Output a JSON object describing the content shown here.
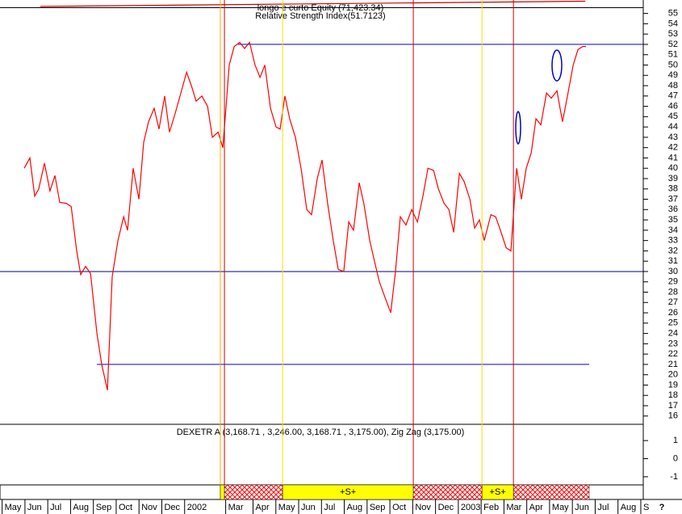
{
  "chart_data": {
    "type": "line",
    "title": "longo e curto Equity (71,423.34)",
    "subtitle": "Relative Strength Index(51.7123)",
    "lower_title": "DEXETR A (3,168.71 , 3,246.00, 3,168.71 , 3,175.00), Zig Zag (3,175.00)",
    "corner_label": "?",
    "xlim": [
      -0.2,
      29.7
    ],
    "xticks": [
      {
        "value": 0,
        "label": "May"
      },
      {
        "value": 1,
        "label": "Jun"
      },
      {
        "value": 2,
        "label": "Jul"
      },
      {
        "value": 3,
        "label": "Aug"
      },
      {
        "value": 4,
        "label": "Sep"
      },
      {
        "value": 5,
        "label": "Oct"
      },
      {
        "value": 6,
        "label": "Nov"
      },
      {
        "value": 7,
        "label": "Dec"
      },
      {
        "value": 8,
        "label": "2002"
      },
      {
        "value": 9.8,
        "label": "Mar"
      },
      {
        "value": 11,
        "label": "Apr"
      },
      {
        "value": 12,
        "label": "May"
      },
      {
        "value": 13,
        "label": "Jun"
      },
      {
        "value": 14,
        "label": "Jul"
      },
      {
        "value": 15,
        "label": "Aug"
      },
      {
        "value": 16,
        "label": "Sep"
      },
      {
        "value": 17,
        "label": "Oct"
      },
      {
        "value": 18,
        "label": "Nov"
      },
      {
        "value": 19,
        "label": "Dec"
      },
      {
        "value": 20,
        "label": "2003"
      },
      {
        "value": 21,
        "label": "Feb"
      },
      {
        "value": 22,
        "label": "Mar"
      },
      {
        "value": 23,
        "label": "Apr"
      },
      {
        "value": 24,
        "label": "May"
      },
      {
        "value": 25,
        "label": "Jun"
      },
      {
        "value": 26,
        "label": "Jul"
      },
      {
        "value": 27,
        "label": "Aug"
      },
      {
        "value": 28,
        "label": "S"
      }
    ],
    "ylim": [
      15.2,
      56.3
    ],
    "yticks": [
      16,
      17,
      18,
      19,
      20,
      21,
      22,
      23,
      24,
      25,
      26,
      27,
      28,
      29,
      30,
      31,
      32,
      33,
      34,
      35,
      36,
      37,
      38,
      39,
      40,
      41,
      42,
      43,
      44,
      45,
      46,
      47,
      48,
      49,
      50,
      51,
      52,
      53,
      54,
      55
    ],
    "y2lim": [
      -1.45,
      1.9
    ],
    "y2ticks": [
      1,
      0,
      -1
    ],
    "series": [
      {
        "name": "Relative Strength Index",
        "color": "#ff0000",
        "x": [
          0.86,
          1.11,
          1.32,
          1.5,
          1.75,
          1.99,
          2.21,
          2.42,
          2.7,
          2.92,
          3.16,
          3.34,
          3.55,
          3.77,
          4.05,
          4.26,
          4.51,
          4.72,
          4.97,
          5.22,
          5.39,
          5.64,
          5.89,
          6.1,
          6.31,
          6.56,
          6.77,
          7.02,
          7.23,
          7.48,
          7.73,
          7.98,
          8.19,
          8.4,
          8.65,
          8.9,
          9.11,
          9.36,
          9.57,
          9.71,
          9.85,
          10.07,
          10.31,
          10.52,
          10.74,
          10.98,
          11.2,
          11.41,
          11.66,
          11.9,
          12.08,
          12.29,
          12.5,
          12.75,
          13,
          13.25,
          13.46,
          13.71,
          13.92,
          14.17,
          14.41,
          14.63,
          14.87,
          15.09,
          15.3,
          15.55,
          15.76,
          16.01,
          16.22,
          16.43,
          16.68,
          16.93,
          17.14,
          17.35,
          17.6,
          17.85,
          18.1,
          18.34,
          18.56,
          18.81,
          19.02,
          19.27,
          19.48,
          19.69,
          19.94,
          20.15,
          20.4,
          20.61,
          20.82,
          21.03,
          21.32,
          21.53,
          21.74,
          21.99,
          22.2,
          22.34,
          22.45,
          22.66,
          22.87,
          23.09,
          23.3,
          23.51,
          23.76,
          23.97,
          24.22,
          24.46,
          24.68,
          24.93,
          25.14,
          25.35,
          25.49
        ],
        "values": [
          40,
          41,
          37.3,
          38,
          40.5,
          37.8,
          39.3,
          36.7,
          36.6,
          36.3,
          32,
          29.7,
          30.5,
          29.8,
          24,
          21,
          18.5,
          29.5,
          33,
          35.3,
          34,
          40,
          37,
          42.5,
          44.5,
          45.8,
          43.8,
          47,
          43.5,
          45.3,
          47.3,
          49.3,
          48,
          46.5,
          47,
          46,
          43,
          43.5,
          42,
          46,
          50,
          51.8,
          52.2,
          51.6,
          52.2,
          50,
          48.8,
          50,
          45.8,
          44,
          43.8,
          47,
          44.8,
          43,
          40,
          36,
          35.5,
          39,
          40.8,
          36.5,
          33,
          30.2,
          30,
          34.8,
          34,
          38.6,
          36.5,
          33,
          31,
          29,
          27.5,
          26,
          30,
          35.3,
          34.5,
          36,
          34.8,
          37.3,
          40,
          39.8,
          38,
          36.6,
          36,
          33.8,
          39.5,
          38.7,
          37,
          34.2,
          35,
          33,
          35.5,
          35.3,
          34,
          32.3,
          32,
          36.5,
          40,
          37,
          40,
          41.5,
          44.8,
          44.2,
          47.3,
          46.8,
          47.5,
          44.5,
          47,
          50,
          51.5,
          51.8,
          51.8
        ]
      },
      {
        "name": "longo e curto Equity",
        "color": "#cc0000",
        "x": [
          1.57,
          25.46
        ],
        "values": [
          55.67,
          56.18
        ]
      }
    ],
    "hlines": [
      {
        "value": 55.56,
        "x": [
          -0.2,
          28.0
        ],
        "color": "#000000"
      },
      {
        "value": 52,
        "x": [
          10.23,
          28.0
        ],
        "color": "#0000cc"
      },
      {
        "value": 30,
        "x": [
          -0.2,
          28.0
        ],
        "color": "#000080"
      },
      {
        "value": 21,
        "x": [
          4.05,
          25.63
        ],
        "color": "#0000cc"
      }
    ],
    "vlines": [
      {
        "x": 9.46,
        "color": "#ffaa00"
      },
      {
        "x": 9.64,
        "color": "#cc0000"
      },
      {
        "x": 12.19,
        "color": "#ffdd00"
      },
      {
        "x": 17.92,
        "color": "#cc0000"
      },
      {
        "x": 20.93,
        "color": "#ffdd00"
      },
      {
        "x": 22.31,
        "color": "#cc0000"
      }
    ],
    "bands": [
      {
        "x": [
          9.46,
          9.64
        ],
        "color": "#ffff00"
      },
      {
        "x": [
          9.64,
          12.19
        ],
        "color": "#ff0000",
        "pattern": "crosshatch"
      },
      {
        "x": [
          12.19,
          17.92
        ],
        "color": "#ffff00",
        "label": "+S+"
      },
      {
        "x": [
          17.92,
          20.93
        ],
        "color": "#ff0000",
        "pattern": "crosshatch"
      },
      {
        "x": [
          20.93,
          22.31
        ],
        "color": "#ffff00",
        "label": "+S+"
      },
      {
        "x": [
          22.31,
          25.63
        ],
        "color": "#ff0000",
        "pattern": "crosshatch"
      }
    ]
  }
}
